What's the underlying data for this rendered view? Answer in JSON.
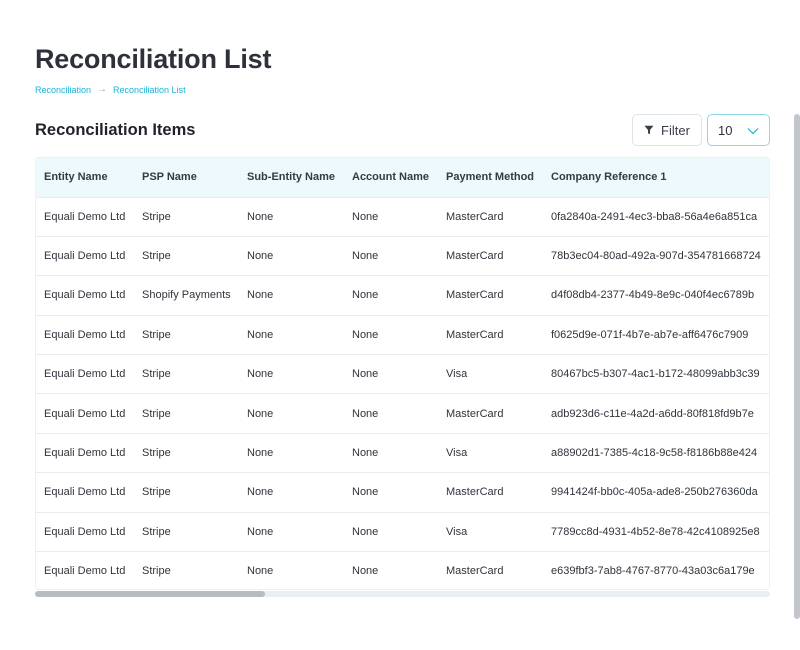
{
  "page": {
    "title": "Reconciliation List"
  },
  "breadcrumb": {
    "items": [
      "Reconciliation",
      "Reconciliation List"
    ],
    "separator": "→"
  },
  "section": {
    "title": "Reconciliation Items"
  },
  "toolbar": {
    "filter_label": "Filter",
    "filter_icon": "funnel-icon",
    "page_size_value": "10",
    "page_size_icon": "chevron-down-icon"
  },
  "colors": {
    "accent": "#19b3d6",
    "header_bg": "#edf9fd",
    "select_border": "#8fd6ea"
  },
  "table": {
    "columns": [
      "Entity Name",
      "PSP Name",
      "Sub-Entity Name",
      "Account Name",
      "Payment Method",
      "Company Reference 1"
    ],
    "rows": [
      [
        "Equali Demo Ltd",
        "Stripe",
        "None",
        "None",
        "MasterCard",
        "0fa2840a-2491-4ec3-bba8-56a4e6a851ca"
      ],
      [
        "Equali Demo Ltd",
        "Stripe",
        "None",
        "None",
        "MasterCard",
        "78b3ec04-80ad-492a-907d-354781668724"
      ],
      [
        "Equali Demo Ltd",
        "Shopify Payments",
        "None",
        "None",
        "MasterCard",
        "d4f08db4-2377-4b49-8e9c-040f4ec6789b"
      ],
      [
        "Equali Demo Ltd",
        "Stripe",
        "None",
        "None",
        "MasterCard",
        "f0625d9e-071f-4b7e-ab7e-aff6476c7909"
      ],
      [
        "Equali Demo Ltd",
        "Stripe",
        "None",
        "None",
        "Visa",
        "80467bc5-b307-4ac1-b172-48099abb3c39"
      ],
      [
        "Equali Demo Ltd",
        "Stripe",
        "None",
        "None",
        "MasterCard",
        "adb923d6-c11e-4a2d-a6dd-80f818fd9b7e"
      ],
      [
        "Equali Demo Ltd",
        "Stripe",
        "None",
        "None",
        "Visa",
        "a88902d1-7385-4c18-9c58-f8186b88e424"
      ],
      [
        "Equali Demo Ltd",
        "Stripe",
        "None",
        "None",
        "MasterCard",
        "9941424f-bb0c-405a-ade8-250b276360da"
      ],
      [
        "Equali Demo Ltd",
        "Stripe",
        "None",
        "None",
        "Visa",
        "7789cc8d-4931-4b52-8e78-42c4108925e8"
      ],
      [
        "Equali Demo Ltd",
        "Stripe",
        "None",
        "None",
        "MasterCard",
        "e639fbf3-7ab8-4767-8770-43a03c6a179e"
      ]
    ]
  }
}
